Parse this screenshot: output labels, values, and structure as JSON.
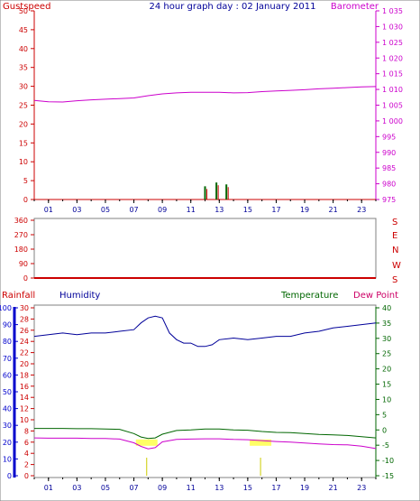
{
  "title": "24 hour graph day : 02 January 2011",
  "colors": {
    "axis_red": "#cc0000",
    "barometer": "#cc00cc",
    "humidity": "#000099",
    "temperature": "#006600",
    "dewpoint": "#cc0066",
    "rain_axis": "#0000cc",
    "minmax_label": "#ffff66"
  },
  "chart_data": [
    {
      "id": "top",
      "type": "line",
      "left_label": "Gustspeed",
      "right_label": "Barometer",
      "x_ticks": [
        "01",
        "03",
        "05",
        "07",
        "09",
        "11",
        "13",
        "15",
        "17",
        "19",
        "21",
        "23"
      ],
      "x_range": [
        0,
        24
      ],
      "left_ticks": [
        "50",
        "45",
        "40",
        "35",
        "30",
        "25",
        "20",
        "15",
        "10",
        "5",
        "0"
      ],
      "left_range": [
        0,
        50
      ],
      "right_ticks": [
        "1 035",
        "1 030",
        "1 025",
        "1 020",
        "1 015",
        "1 010",
        "1 005",
        "1 000",
        "995",
        "990",
        "985",
        "980",
        "975"
      ],
      "right_range": [
        975,
        1035
      ],
      "series": [
        {
          "key": "barometer",
          "color_key": "barometer",
          "x": [
            0,
            1,
            2,
            3,
            4,
            5,
            6,
            7,
            8,
            9,
            10,
            11,
            12,
            13,
            14,
            15,
            16,
            17,
            18,
            19,
            20,
            21,
            22,
            23,
            24
          ],
          "values": [
            1006.5,
            1006.1,
            1006.0,
            1006.4,
            1006.7,
            1006.9,
            1007.1,
            1007.3,
            1008.0,
            1008.6,
            1008.9,
            1009.1,
            1009.1,
            1009.1,
            1008.9,
            1009.0,
            1009.3,
            1009.5,
            1009.7,
            1009.9,
            1010.2,
            1010.4,
            1010.6,
            1010.8,
            1010.9
          ],
          "axis": "right"
        }
      ],
      "gusts": [
        {
          "x": 12.0,
          "y": 3.5
        },
        {
          "x": 12.8,
          "y": 4.5
        },
        {
          "x": 13.5,
          "y": 4.0
        }
      ]
    },
    {
      "id": "middle",
      "type": "line",
      "right_label_letters": [
        "S",
        "E",
        "N",
        "W",
        "S"
      ],
      "left_ticks": [
        "360",
        "270",
        "180",
        "90",
        "0"
      ],
      "left_range": [
        0,
        360
      ]
    },
    {
      "id": "bottom",
      "type": "line",
      "left_label": "Rainfall",
      "humidity_label": "Humidity",
      "temp_label": "Temperature",
      "dew_label": "Dew Point",
      "x_ticks": [
        "01",
        "03",
        "05",
        "07",
        "09",
        "11",
        "13",
        "15",
        "17",
        "19",
        "21",
        "23"
      ],
      "x_range": [
        0,
        24
      ],
      "rain_ticks": [
        "100",
        "90",
        "80",
        "70",
        "60",
        "50",
        "40",
        "30",
        "20",
        "10",
        "0"
      ],
      "rain_range": [
        0,
        100
      ],
      "inner_ticks": [
        "30",
        "28",
        "26",
        "24",
        "22",
        "20",
        "18",
        "16",
        "14",
        "12",
        "10",
        "8",
        "6",
        "4",
        "2",
        "0"
      ],
      "temp_ticks": [
        "40",
        "35",
        "30",
        "25",
        "20",
        "15",
        "10",
        "5",
        "0",
        "-5",
        "-10",
        "-15"
      ],
      "temp_range": [
        -15,
        40
      ],
      "series": [
        {
          "key": "humidity",
          "color_key": "humidity",
          "x": [
            0,
            1,
            2,
            3,
            4,
            5,
            6,
            7,
            7.5,
            8,
            8.5,
            9,
            9.5,
            10,
            10.5,
            11,
            11.5,
            12,
            12.5,
            13,
            14,
            15,
            16,
            17,
            18,
            19,
            20,
            21,
            22,
            23,
            24
          ],
          "values": [
            83,
            84,
            85,
            84,
            85,
            85,
            86,
            87,
            91,
            94,
            95,
            94,
            85,
            81,
            79,
            79,
            77,
            77,
            78,
            81,
            82,
            81,
            82,
            83,
            83,
            85,
            86,
            88,
            89,
            90,
            91
          ]
        },
        {
          "key": "temperature",
          "color_key": "temperature",
          "x": [
            0,
            1,
            2,
            3,
            4,
            5,
            6,
            7,
            7.5,
            8,
            8.5,
            9,
            10,
            11,
            12,
            13,
            14,
            15,
            16,
            17,
            18,
            19,
            20,
            21,
            22,
            23,
            24
          ],
          "values": [
            0.5,
            0.5,
            0.5,
            0.4,
            0.4,
            0.3,
            0.2,
            -1.2,
            -2.3,
            -2.8,
            -2.6,
            -1.4,
            -0.2,
            0.0,
            0.3,
            0.3,
            0.0,
            -0.1,
            -0.5,
            -0.8,
            -0.9,
            -1.2,
            -1.5,
            -1.6,
            -1.8,
            -2.2,
            -2.6
          ]
        },
        {
          "key": "dewpoint",
          "color_key": "dewpoint",
          "x": [
            0,
            1,
            2,
            3,
            4,
            5,
            6,
            7,
            7.5,
            8,
            8.5,
            9,
            10,
            11,
            12,
            13,
            14,
            15,
            16,
            17,
            18,
            19,
            20,
            21,
            22,
            23,
            24
          ],
          "values": [
            -2.6,
            -2.7,
            -2.7,
            -2.7,
            -2.8,
            -2.8,
            -3.0,
            -4.2,
            -5.4,
            -6.2,
            -5.8,
            -3.9,
            -3.1,
            -3.0,
            -2.9,
            -2.9,
            -3.1,
            -3.2,
            -3.5,
            -3.8,
            -4.0,
            -4.3,
            -4.6,
            -4.8,
            -4.9,
            -5.3,
            -6.1
          ]
        }
      ],
      "markers": [
        {
          "x": 7.9
        },
        {
          "x": 15.9
        }
      ]
    }
  ]
}
